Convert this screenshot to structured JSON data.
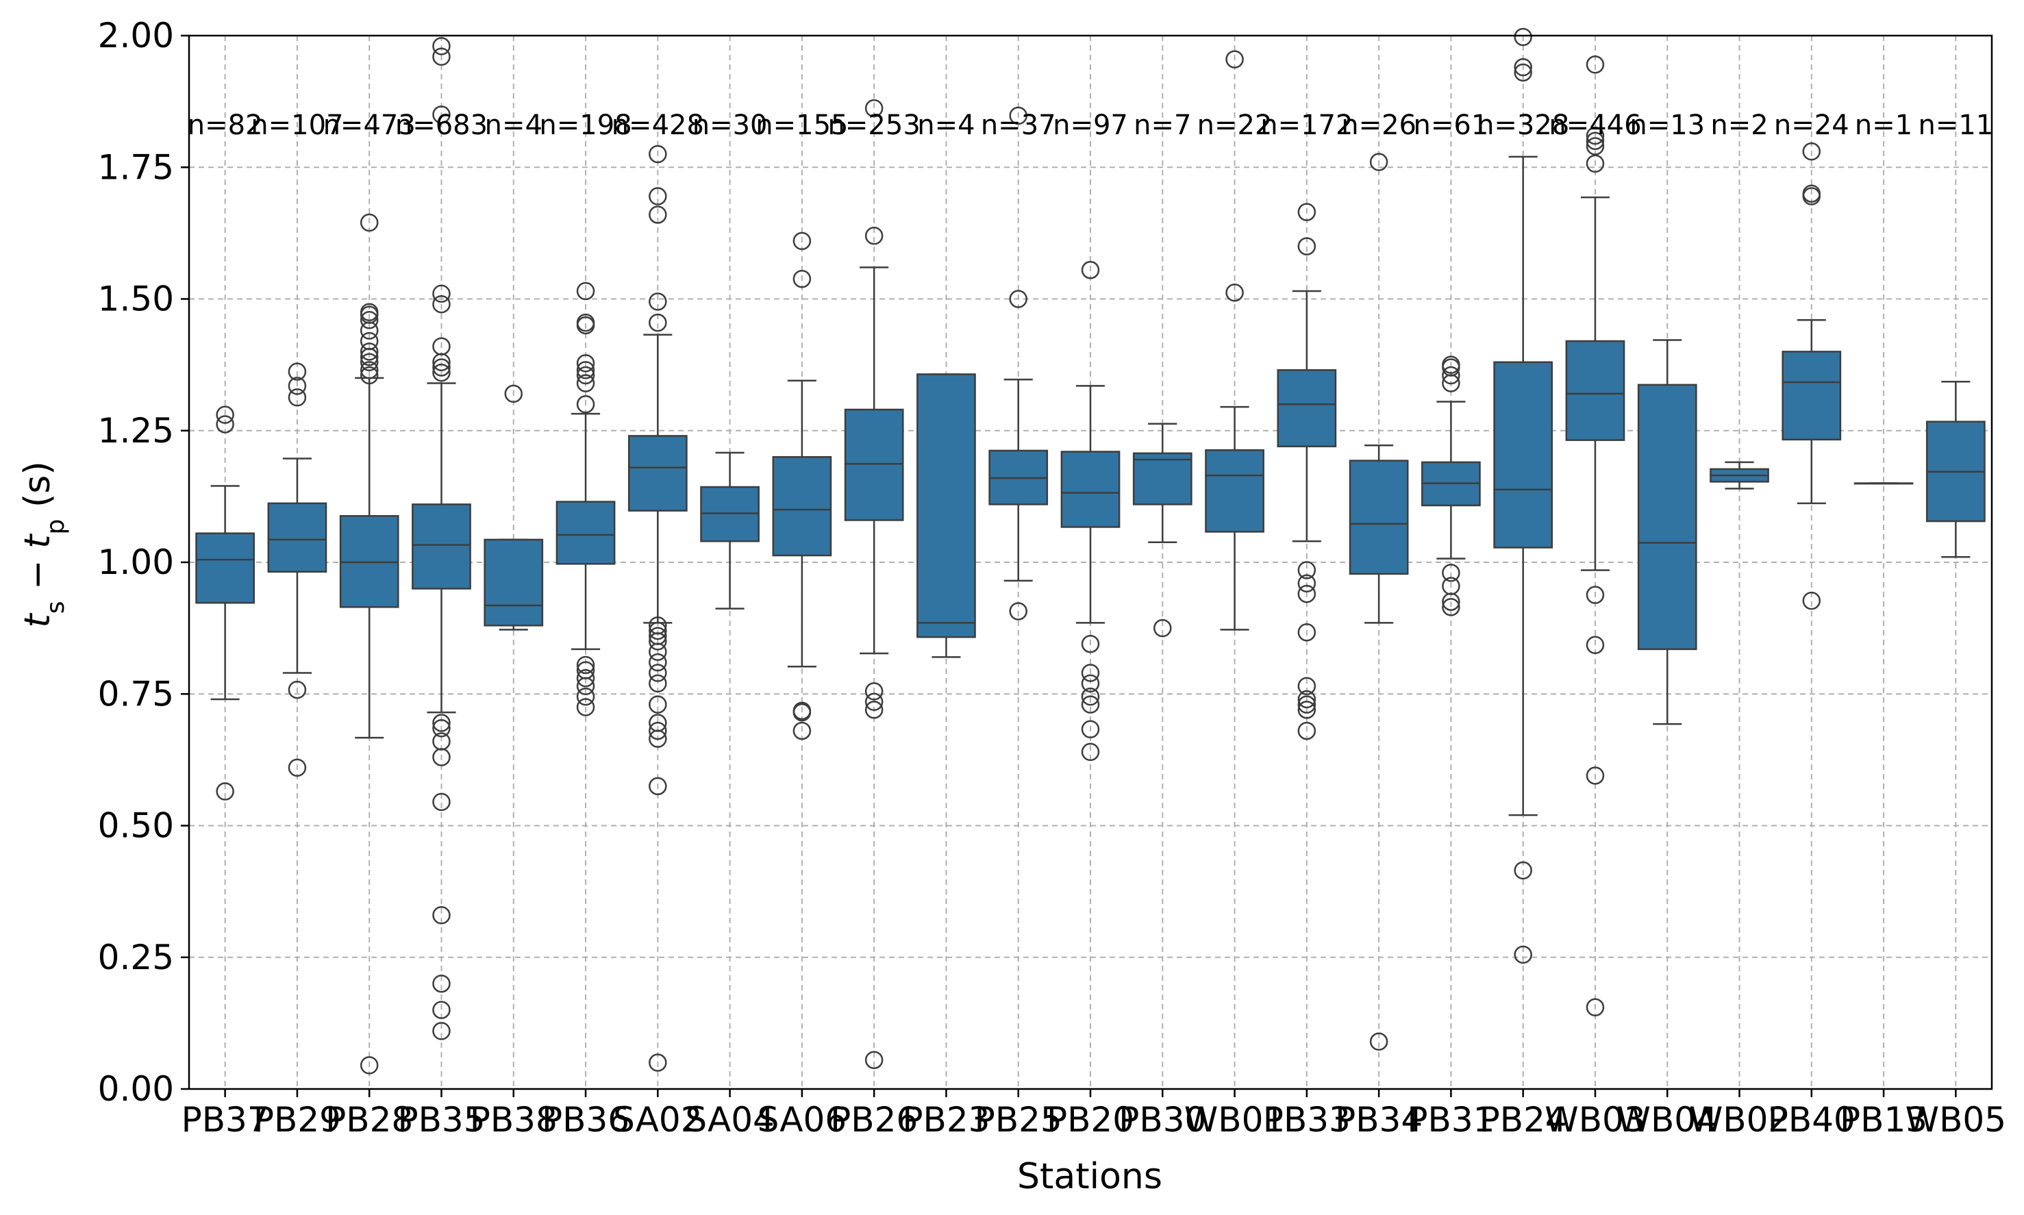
{
  "chart_data": {
    "type": "box",
    "xlabel": "Stations",
    "ylabel_parts": {
      "t": "t",
      "s": "s",
      "minus": " − ",
      "p": "p",
      "unit": " (s)"
    },
    "ylim": [
      0,
      2.0
    ],
    "yticks": [
      "0.00",
      "0.25",
      "0.50",
      "0.75",
      "1.00",
      "1.25",
      "1.50",
      "1.75",
      "2.00"
    ],
    "grid": true,
    "colors": {
      "box": "#3274a1",
      "line": "#3d3d3d",
      "grid": "#b0b0b0"
    },
    "boxes": [
      {
        "station": "PB37",
        "n": "n=82",
        "q1": 0.923,
        "median": 1.005,
        "q3": 1.055,
        "whislo": 0.74,
        "whishi": 1.145,
        "fliers": [
          0.565,
          1.262,
          1.28
        ]
      },
      {
        "station": "PB29",
        "n": "n=107",
        "q1": 0.982,
        "median": 1.043,
        "q3": 1.112,
        "whislo": 0.79,
        "whishi": 1.197,
        "fliers": [
          0.61,
          0.758,
          1.313,
          1.335,
          1.362
        ]
      },
      {
        "station": "PB28",
        "n": "n=473",
        "q1": 0.915,
        "median": 1.0,
        "q3": 1.088,
        "whislo": 0.667,
        "whishi": 1.35,
        "fliers": [
          0.045,
          1.355,
          1.365,
          1.38,
          1.39,
          1.4,
          1.42,
          1.44,
          1.46,
          1.47,
          1.475,
          1.645
        ]
      },
      {
        "station": "PB35",
        "n": "n=683",
        "q1": 0.95,
        "median": 1.033,
        "q3": 1.11,
        "whislo": 0.715,
        "whishi": 1.34,
        "fliers": [
          0.11,
          0.15,
          0.2,
          0.33,
          0.545,
          0.63,
          0.66,
          0.685,
          0.695,
          1.36,
          1.37,
          1.38,
          1.41,
          1.49,
          1.51,
          1.85,
          1.96,
          1.98
        ]
      },
      {
        "station": "PB38",
        "n": "n=4",
        "q1": 0.88,
        "median": 0.918,
        "q3": 1.043,
        "whislo": 0.872,
        "whishi": 1.043,
        "fliers": [
          1.32
        ]
      },
      {
        "station": "PB36",
        "n": "n=198",
        "q1": 0.997,
        "median": 1.052,
        "q3": 1.115,
        "whislo": 0.835,
        "whishi": 1.282,
        "fliers": [
          0.725,
          0.745,
          0.765,
          0.78,
          0.795,
          0.805,
          1.3,
          1.34,
          1.355,
          1.365,
          1.378,
          1.45,
          1.455,
          1.515
        ]
      },
      {
        "station": "SA02",
        "n": "n=428",
        "q1": 1.098,
        "median": 1.18,
        "q3": 1.24,
        "whislo": 0.885,
        "whishi": 1.432,
        "fliers": [
          0.05,
          0.575,
          0.665,
          0.68,
          0.695,
          0.73,
          0.77,
          0.79,
          0.81,
          0.83,
          0.85,
          0.86,
          0.87,
          0.88,
          1.455,
          1.495,
          1.66,
          1.695,
          1.775
        ]
      },
      {
        "station": "SA04",
        "n": "n=30",
        "q1": 1.04,
        "median": 1.093,
        "q3": 1.143,
        "whislo": 0.912,
        "whishi": 1.208,
        "fliers": []
      },
      {
        "station": "SA06",
        "n": "n=155",
        "q1": 1.013,
        "median": 1.1,
        "q3": 1.2,
        "whislo": 0.802,
        "whishi": 1.345,
        "fliers": [
          0.68,
          0.715,
          0.718,
          1.538,
          1.61
        ]
      },
      {
        "station": "PB26",
        "n": "n=253",
        "q1": 1.08,
        "median": 1.187,
        "q3": 1.29,
        "whislo": 0.827,
        "whishi": 1.56,
        "fliers": [
          0.055,
          0.72,
          0.735,
          0.755,
          1.62,
          1.862
        ]
      },
      {
        "station": "PB23",
        "n": "n=4",
        "q1": 0.858,
        "median": 0.885,
        "q3": 1.357,
        "whislo": 0.82,
        "whishi": 1.357,
        "fliers": []
      },
      {
        "station": "PB25",
        "n": "n=37",
        "q1": 1.11,
        "median": 1.16,
        "q3": 1.212,
        "whislo": 0.965,
        "whishi": 1.347,
        "fliers": [
          0.907,
          1.5,
          1.848
        ]
      },
      {
        "station": "PB20",
        "n": "n=97",
        "q1": 1.067,
        "median": 1.132,
        "q3": 1.21,
        "whislo": 0.885,
        "whishi": 1.335,
        "fliers": [
          0.64,
          0.683,
          0.73,
          0.745,
          0.77,
          0.79,
          0.845,
          1.555
        ]
      },
      {
        "station": "PB30",
        "n": "n=7",
        "q1": 1.11,
        "median": 1.195,
        "q3": 1.207,
        "whislo": 1.038,
        "whishi": 1.263,
        "fliers": [
          0.875
        ]
      },
      {
        "station": "WB01",
        "n": "n=22",
        "q1": 1.058,
        "median": 1.165,
        "q3": 1.213,
        "whislo": 0.872,
        "whishi": 1.295,
        "fliers": [
          1.512,
          1.955
        ]
      },
      {
        "station": "PB33",
        "n": "n=172",
        "q1": 1.22,
        "median": 1.3,
        "q3": 1.365,
        "whislo": 1.04,
        "whishi": 1.515,
        "fliers": [
          0.68,
          0.72,
          0.73,
          0.74,
          0.765,
          0.867,
          0.94,
          0.96,
          0.985,
          1.6,
          1.665
        ]
      },
      {
        "station": "PB34",
        "n": "n=26",
        "q1": 0.978,
        "median": 1.073,
        "q3": 1.193,
        "whislo": 0.885,
        "whishi": 1.222,
        "fliers": [
          0.09,
          1.76
        ]
      },
      {
        "station": "PB31",
        "n": "n=61",
        "q1": 1.108,
        "median": 1.15,
        "q3": 1.19,
        "whislo": 1.007,
        "whishi": 1.305,
        "fliers": [
          0.915,
          0.925,
          0.955,
          0.98,
          1.34,
          1.355,
          1.37,
          1.375
        ]
      },
      {
        "station": "PB24",
        "n": "n=328",
        "q1": 1.028,
        "median": 1.138,
        "q3": 1.38,
        "whislo": 0.52,
        "whishi": 1.77,
        "fliers": [
          0.255,
          0.415,
          1.93,
          1.94,
          2.0
        ]
      },
      {
        "station": "WB03",
        "n": "n=446",
        "q1": 1.232,
        "median": 1.32,
        "q3": 1.42,
        "whislo": 0.985,
        "whishi": 1.693,
        "fliers": [
          0.155,
          0.595,
          0.843,
          0.938,
          1.757,
          1.79,
          1.8,
          1.81,
          1.945
        ]
      },
      {
        "station": "WB04",
        "n": "n=13",
        "q1": 0.835,
        "median": 1.037,
        "q3": 1.337,
        "whislo": 0.693,
        "whishi": 1.422,
        "fliers": []
      },
      {
        "station": "WB02",
        "n": "n=2",
        "q1": 1.153,
        "median": 1.165,
        "q3": 1.177,
        "whislo": 1.14,
        "whishi": 1.19,
        "fliers": []
      },
      {
        "station": "PB40",
        "n": "n=24",
        "q1": 1.233,
        "median": 1.342,
        "q3": 1.4,
        "whislo": 1.112,
        "whishi": 1.46,
        "fliers": [
          0.927,
          1.695,
          1.7,
          1.78
        ]
      },
      {
        "station": "PB13",
        "n": "n=1",
        "q1": 1.15,
        "median": 1.15,
        "q3": 1.15,
        "whislo": 1.15,
        "whishi": 1.15,
        "fliers": []
      },
      {
        "station": "WB05",
        "n": "n=11",
        "q1": 1.078,
        "median": 1.172,
        "q3": 1.267,
        "whislo": 1.01,
        "whishi": 1.343,
        "fliers": []
      }
    ]
  }
}
